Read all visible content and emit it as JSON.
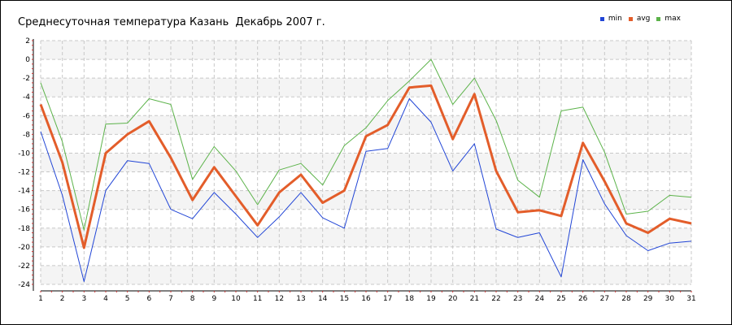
{
  "chart_data": {
    "type": "line",
    "title": "Среднесуточная температура Казань  Декабрь 2007 г.",
    "xlabel": "",
    "ylabel": "",
    "x": [
      1,
      2,
      3,
      4,
      5,
      6,
      7,
      8,
      9,
      10,
      11,
      12,
      13,
      14,
      15,
      16,
      17,
      18,
      19,
      20,
      21,
      22,
      23,
      24,
      25,
      26,
      27,
      28,
      29,
      30,
      31
    ],
    "xlim": [
      1,
      31
    ],
    "ylim": [
      -24,
      2
    ],
    "yticks": [
      2,
      0,
      -2,
      -4,
      -6,
      -8,
      -10,
      -12,
      -14,
      -16,
      -18,
      -20,
      -22,
      -24
    ],
    "grid": true,
    "legend_position": "top-right",
    "series": [
      {
        "name": "min",
        "color": "#2145d6",
        "width": 1,
        "values": [
          -7.7,
          -14.5,
          -23.7,
          -14.0,
          -10.8,
          -11.1,
          -16.0,
          -17.0,
          -14.2,
          -16.5,
          -19.0,
          -16.8,
          -14.2,
          -16.9,
          -18.0,
          -9.8,
          -9.5,
          -4.2,
          -6.7,
          -11.9,
          -9.0,
          -18.1,
          -19.0,
          -18.5,
          -23.2,
          -10.7,
          -15.4,
          -18.8,
          -20.4,
          -19.6,
          -19.4
        ]
      },
      {
        "name": "avg",
        "color": "#e35d2a",
        "width": 3,
        "values": [
          -4.8,
          -11.0,
          -20.1,
          -10.0,
          -8.0,
          -6.6,
          -10.5,
          -15.0,
          -11.5,
          -14.6,
          -17.7,
          -14.2,
          -12.3,
          -15.3,
          -14.0,
          -8.2,
          -7.0,
          -3.0,
          -2.8,
          -8.5,
          -3.7,
          -11.9,
          -16.3,
          -16.1,
          -16.7,
          -8.9,
          -13.0,
          -17.5,
          -18.5,
          -17.0,
          -17.5
        ]
      },
      {
        "name": "max",
        "color": "#5cb34a",
        "width": 1,
        "values": [
          -2.5,
          -8.8,
          -18.2,
          -6.9,
          -6.8,
          -4.2,
          -4.8,
          -12.8,
          -9.3,
          -11.9,
          -15.5,
          -11.8,
          -11.1,
          -13.4,
          -9.2,
          -7.3,
          -4.4,
          -2.3,
          0.0,
          -4.8,
          -2.0,
          -6.5,
          -12.9,
          -14.7,
          -5.5,
          -5.1,
          -9.9,
          -16.5,
          -16.2,
          -14.5,
          -14.7
        ]
      }
    ]
  }
}
